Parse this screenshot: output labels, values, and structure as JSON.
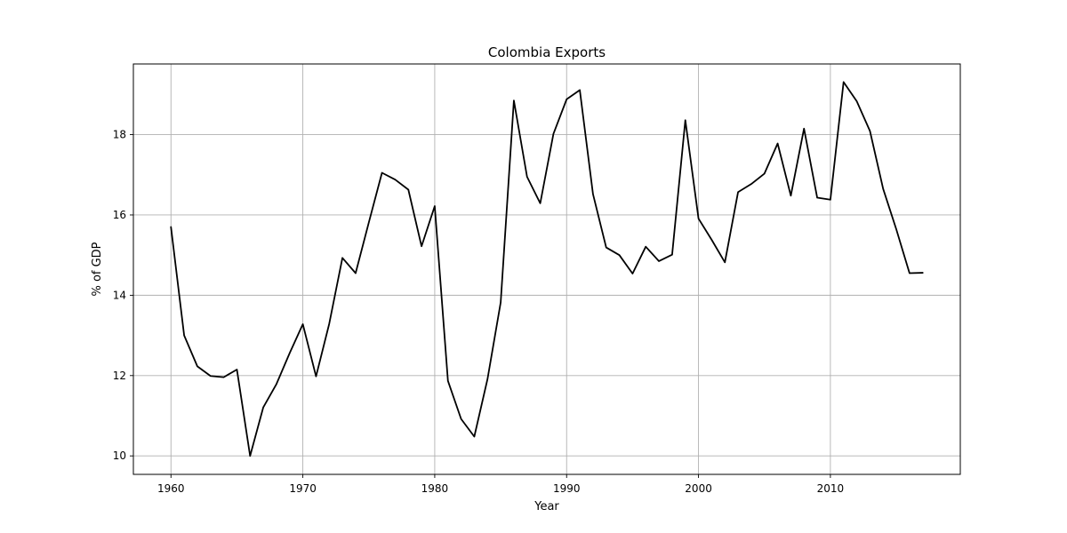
{
  "chart_data": {
    "type": "line",
    "title": "Colombia Exports",
    "xlabel": "Year",
    "ylabel": "% of GDP",
    "xlim": [
      1957.15,
      2019.85
    ],
    "ylim": [
      9.54,
      19.76
    ],
    "grid": true,
    "line_color": "#000000",
    "x_ticks": [
      1960,
      1970,
      1980,
      1990,
      2000,
      2010
    ],
    "y_ticks": [
      10,
      12,
      14,
      16,
      18
    ],
    "series": [
      {
        "x": [
          1960,
          1961,
          1962,
          1963,
          1964,
          1965,
          1966,
          1967,
          1968,
          1969,
          1970,
          1971,
          1972,
          1973,
          1974,
          1975,
          1976,
          1977,
          1978,
          1979,
          1980,
          1981,
          1982,
          1983,
          1984,
          1985,
          1986,
          1987,
          1988,
          1989,
          1990,
          1991,
          1992,
          1993,
          1994,
          1995,
          1996,
          1997,
          1998,
          1999,
          2000,
          2001,
          2002,
          2003,
          2004,
          2005,
          2006,
          2007,
          2008,
          2009,
          2010,
          2011,
          2012,
          2013,
          2014,
          2015,
          2016,
          2017
        ],
        "values": [
          15.7,
          13.0,
          12.23,
          11.99,
          11.96,
          12.15,
          10.0,
          11.21,
          11.79,
          12.56,
          13.28,
          11.98,
          13.29,
          14.93,
          14.55,
          15.81,
          17.05,
          16.88,
          16.63,
          15.22,
          16.22,
          11.87,
          10.92,
          10.48,
          11.91,
          13.82,
          18.85,
          16.95,
          16.29,
          18.02,
          18.88,
          19.11,
          16.52,
          15.19,
          15.0,
          14.54,
          15.21,
          14.85,
          15.01,
          18.36,
          15.91,
          15.38,
          14.82,
          16.57,
          16.77,
          17.03,
          17.78,
          16.48,
          18.15,
          16.43,
          16.38,
          19.31,
          18.83,
          18.09,
          16.65,
          15.64,
          14.55,
          14.56
        ]
      }
    ]
  }
}
